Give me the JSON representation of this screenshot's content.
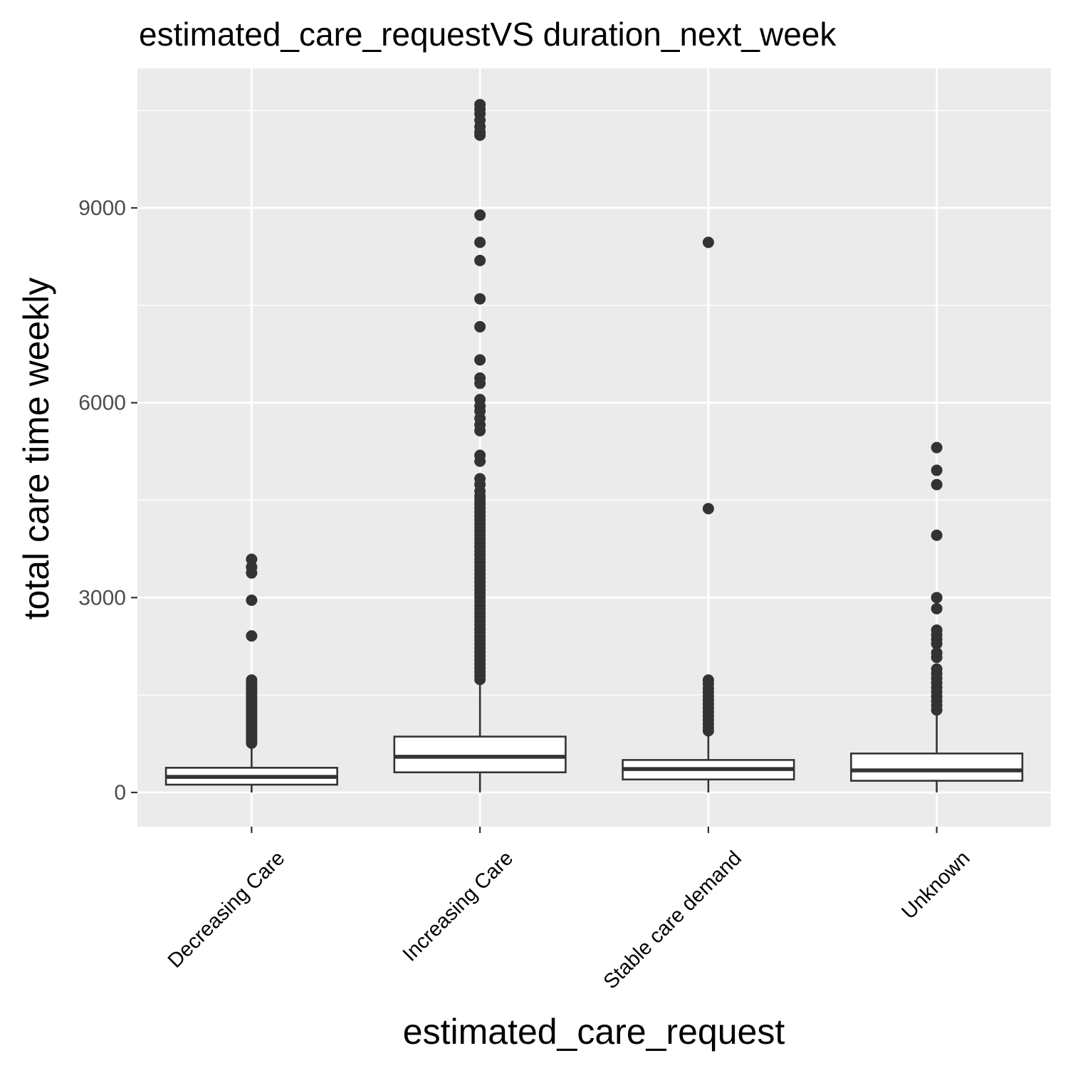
{
  "chart_data": {
    "type": "boxplot",
    "title": "estimated_care_requestVS duration_next_week",
    "xlabel": "estimated_care_request",
    "ylabel": "total care time weekly",
    "ylim": [
      -1400,
      11000
    ],
    "yticks": [
      0,
      3000,
      6000,
      9000
    ],
    "grid": true,
    "legend": "none",
    "categories": [
      "Decreasing Care",
      "Increasing Care",
      "Stable care demand",
      "Unknown"
    ],
    "boxes": [
      {
        "category": "Decreasing Care",
        "min": 0,
        "q1": 120,
        "median": 240,
        "q3": 380,
        "max": 740,
        "outliers": [
          3590,
          3470,
          3380,
          2960,
          2410,
          1730,
          1680,
          1640,
          1600,
          1560,
          1520,
          1480,
          1440,
          1400,
          1360,
          1320,
          1280,
          1240,
          1200,
          1160,
          1120,
          1080,
          1040,
          1000,
          960,
          920,
          880,
          840,
          800,
          760
        ]
      },
      {
        "category": "Increasing Care",
        "min": 0,
        "q1": 310,
        "median": 550,
        "q3": 860,
        "max": 1680,
        "outliers": [
          10590,
          10520,
          10450,
          10350,
          10250,
          10170,
          10120,
          8890,
          8470,
          8190,
          7600,
          7170,
          6660,
          6380,
          6300,
          6050,
          5950,
          5870,
          5760,
          5660,
          5570,
          5190,
          5100,
          4830,
          4740,
          4640,
          4560,
          4500,
          4440,
          4380,
          4320,
          4260,
          4200,
          4140,
          4080,
          4020,
          3960,
          3900,
          3840,
          3780,
          3720,
          3660,
          3600,
          3540,
          3480,
          3420,
          3360,
          3300,
          3240,
          3180,
          3120,
          3060,
          3000,
          2940,
          2880,
          2820,
          2760,
          2700,
          2640,
          2580,
          2520,
          2460,
          2400,
          2340,
          2280,
          2220,
          2160,
          2100,
          2040,
          1980,
          1920,
          1860,
          1800,
          1740
        ]
      },
      {
        "category": "Stable care demand",
        "min": 0,
        "q1": 200,
        "median": 360,
        "q3": 500,
        "max": 920,
        "outliers": [
          8470,
          4370,
          1730,
          1670,
          1600,
          1540,
          1480,
          1420,
          1360,
          1300,
          1240,
          1180,
          1120,
          1060,
          1000,
          950
        ]
      },
      {
        "category": "Unknown",
        "min": 0,
        "q1": 180,
        "median": 340,
        "q3": 600,
        "max": 1200,
        "outliers": [
          5310,
          4960,
          4740,
          3960,
          3000,
          2830,
          2500,
          2430,
          2360,
          2290,
          2150,
          2080,
          1900,
          1830,
          1760,
          1690,
          1620,
          1550,
          1480,
          1410,
          1340,
          1270
        ]
      }
    ]
  }
}
